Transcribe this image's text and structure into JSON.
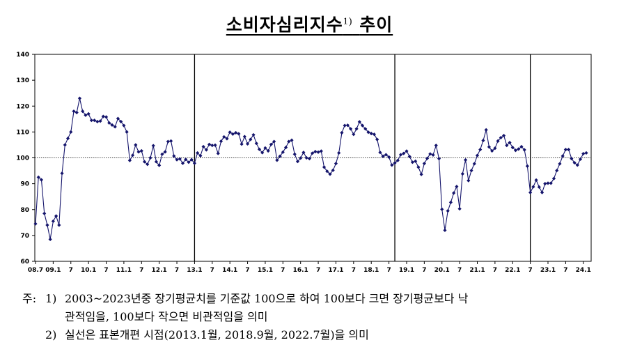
{
  "title": "소비자심리지수",
  "title_superscript": "1)",
  "title_suffix": "추이",
  "notes": {
    "prefix": "주:",
    "items": [
      {
        "num": "1)",
        "line1": "2003~2023년중 장기평균치를 기준값 100으로 하여 100보다 크면 장기평균보다 낙",
        "line2": "관적임을, 100보다 작으면 비관적임을 의미"
      },
      {
        "num": "2)",
        "line1": "실선은 표본개편 시점(2013.1월, 2018.9월, 2022.7월)을 의미"
      }
    ]
  },
  "chart_data": {
    "type": "line",
    "title": "소비자심리지수 추이",
    "xlabel": "",
    "ylabel": "",
    "ylim": [
      60,
      140
    ],
    "yticks": [
      60,
      70,
      80,
      90,
      100,
      110,
      120,
      130,
      140
    ],
    "reference_line": 100,
    "breaks": [
      "2013.1",
      "2018.9",
      "2022.7"
    ],
    "x_start": "2008.7",
    "x_end": "2024.2",
    "x_tick_labels": [
      "08.7",
      "09.1",
      "7",
      "10.1",
      "7",
      "11.1",
      "7",
      "12.1",
      "7",
      "13.1",
      "7",
      "14.1",
      "7",
      "15.1",
      "7",
      "16.1",
      "7",
      "17.1",
      "7",
      "18.1",
      "7",
      "19.1",
      "7",
      "20.1",
      "7",
      "21.1",
      "7",
      "22.1",
      "7",
      "23.1",
      "7",
      "24.1"
    ],
    "series": [
      {
        "color": "#14146b",
        "marker": "diamond",
        "values": [
          74.5,
          92.5,
          91.5,
          78.5,
          74,
          68.5,
          75.5,
          77.5,
          74,
          94,
          105,
          107.5,
          110,
          118,
          117.5,
          123,
          118,
          116.5,
          117,
          114.5,
          114.5,
          114,
          114.2,
          116,
          115.8,
          113.5,
          112.7,
          112,
          115.2,
          114,
          112.5,
          110,
          99,
          101,
          105,
          102.3,
          102.7,
          98.5,
          97.5,
          100,
          104.7,
          98.5,
          97.1,
          101.4,
          102.3,
          106.3,
          106.5,
          100.7,
          99.3,
          99.6,
          97.9,
          99.4,
          98.3,
          99.3,
          97.9,
          101.9,
          100.8,
          104.3,
          103.1,
          105.2,
          104.8,
          104.9,
          101.7,
          106.4,
          108.1,
          107.4,
          109.9,
          109.2,
          109.7,
          109.3,
          105.3,
          108.2,
          105.4,
          107.1,
          108.9,
          105.6,
          103.3,
          102,
          103.8,
          102.7,
          105.2,
          106.3,
          99.1,
          100.6,
          102.2,
          104,
          106.3,
          106.8,
          101.4,
          98.6,
          99.9,
          102.1,
          100,
          99.7,
          101.8,
          102.4,
          102.2,
          102.6,
          96.4,
          94.8,
          93.7,
          95.2,
          97.8,
          101.9,
          109.7,
          112.5,
          112.6,
          111.2,
          109.1,
          111.2,
          113.9,
          112.5,
          111.2,
          109.9,
          109.4,
          109.1,
          107.1,
          102.1,
          100.6,
          101.2,
          100.3,
          97.2,
          98,
          99,
          101.2,
          101.7,
          102.6,
          100.5,
          98.3,
          98.7,
          96.4,
          93.6,
          97.8,
          99.8,
          101.5,
          101.1,
          104.8,
          99.7,
          80.1,
          72,
          79.5,
          82.8,
          86.4,
          88.9,
          80.3,
          93.8,
          99.2,
          91.2,
          95.1,
          97.7,
          100.9,
          103.2,
          106.7,
          110.8,
          104.2,
          102.7,
          103.7,
          106.5,
          107.8,
          108.6,
          104.8,
          105.9,
          104,
          102.9,
          103.4,
          104.3,
          103.1,
          96.8,
          86.6,
          88.8,
          91.4,
          88.7,
          86.6,
          90,
          90.2,
          90.2,
          92,
          95.1,
          97.7,
          100.7,
          103.2,
          103.2,
          99.7,
          98.1,
          97.2,
          99.5,
          101.6,
          101.9
        ]
      }
    ]
  }
}
